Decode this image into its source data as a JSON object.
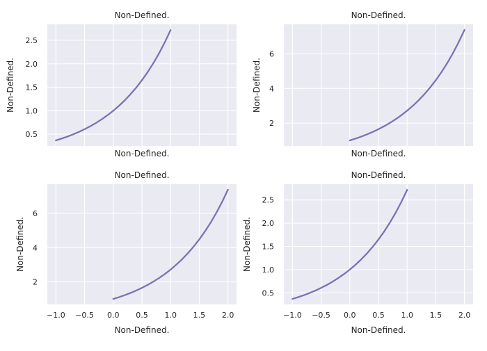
{
  "chart_data": [
    {
      "type": "line",
      "title": "Non-Defined.",
      "xlabel": "Non-Defined.",
      "ylabel": "Non-Defined.",
      "show_x_ticklabels": false,
      "xlim": [
        -1.15,
        2.15
      ],
      "ylim": [
        0.25,
        2.84
      ],
      "xticks": [
        -1.0,
        -0.5,
        0.0,
        0.5,
        1.0,
        1.5,
        2.0
      ],
      "yticks": [
        0.5,
        1.0,
        1.5,
        2.0,
        2.5
      ],
      "ytick_labels": [
        "0.5",
        "1.0",
        "1.5",
        "2.0",
        "2.5"
      ],
      "grid": true,
      "series": [
        {
          "color": "#7b72b5",
          "x": [
            -1.0,
            -0.9,
            -0.8,
            -0.7,
            -0.6,
            -0.5,
            -0.4,
            -0.3,
            -0.2,
            -0.1,
            0.0,
            0.1,
            0.2,
            0.3,
            0.4,
            0.5,
            0.6,
            0.7,
            0.8,
            0.9,
            1.0
          ],
          "y": [
            0.368,
            0.407,
            0.449,
            0.497,
            0.549,
            0.607,
            0.67,
            0.741,
            0.819,
            0.905,
            1.0,
            1.105,
            1.221,
            1.35,
            1.492,
            1.649,
            1.822,
            2.014,
            2.226,
            2.46,
            2.718
          ]
        }
      ]
    },
    {
      "type": "line",
      "title": "Non-Defined.",
      "xlabel": "Non-Defined.",
      "ylabel": "Non-Defined.",
      "show_x_ticklabels": false,
      "xlim": [
        -1.15,
        2.15
      ],
      "ylim": [
        0.68,
        7.71
      ],
      "xticks": [
        -1.0,
        -0.5,
        0.0,
        0.5,
        1.0,
        1.5,
        2.0
      ],
      "yticks": [
        2,
        4,
        6
      ],
      "ytick_labels": [
        "2",
        "4",
        "6"
      ],
      "grid": true,
      "series": [
        {
          "color": "#7b72b5",
          "x": [
            0.0,
            0.1,
            0.2,
            0.3,
            0.4,
            0.5,
            0.6,
            0.7,
            0.8,
            0.9,
            1.0,
            1.1,
            1.2,
            1.3,
            1.4,
            1.5,
            1.6,
            1.7,
            1.8,
            1.9,
            2.0
          ],
          "y": [
            1.0,
            1.105,
            1.221,
            1.35,
            1.492,
            1.649,
            1.822,
            2.014,
            2.226,
            2.46,
            2.718,
            3.004,
            3.32,
            3.669,
            4.055,
            4.482,
            4.953,
            5.474,
            6.05,
            6.686,
            7.389
          ]
        }
      ]
    },
    {
      "type": "line",
      "title": "Non-Defined.",
      "xlabel": "Non-Defined.",
      "ylabel": "Non-Defined.",
      "show_x_ticklabels": true,
      "xlim": [
        -1.15,
        2.15
      ],
      "ylim": [
        0.68,
        7.71
      ],
      "xticks": [
        -1.0,
        -0.5,
        0.0,
        0.5,
        1.0,
        1.5,
        2.0
      ],
      "xtick_labels": [
        "−1.0",
        "−0.5",
        "0.0",
        "0.5",
        "1.0",
        "1.5",
        "2.0"
      ],
      "yticks": [
        2,
        4,
        6
      ],
      "ytick_labels": [
        "2",
        "4",
        "6"
      ],
      "grid": true,
      "series": [
        {
          "color": "#7b72b5",
          "x": [
            0.0,
            0.1,
            0.2,
            0.3,
            0.4,
            0.5,
            0.6,
            0.7,
            0.8,
            0.9,
            1.0,
            1.1,
            1.2,
            1.3,
            1.4,
            1.5,
            1.6,
            1.7,
            1.8,
            1.9,
            2.0
          ],
          "y": [
            1.0,
            1.105,
            1.221,
            1.35,
            1.492,
            1.649,
            1.822,
            2.014,
            2.226,
            2.46,
            2.718,
            3.004,
            3.32,
            3.669,
            4.055,
            4.482,
            4.953,
            5.474,
            6.05,
            6.686,
            7.389
          ]
        }
      ]
    },
    {
      "type": "line",
      "title": "Non-Defined.",
      "xlabel": "Non-Defined.",
      "ylabel": "Non-Defined.",
      "show_x_ticklabels": true,
      "xlim": [
        -1.15,
        2.15
      ],
      "ylim": [
        0.25,
        2.84
      ],
      "xticks": [
        -1.0,
        -0.5,
        0.0,
        0.5,
        1.0,
        1.5,
        2.0
      ],
      "xtick_labels": [
        "−1.0",
        "−0.5",
        "0.0",
        "0.5",
        "1.0",
        "1.5",
        "2.0"
      ],
      "yticks": [
        0.5,
        1.0,
        1.5,
        2.0,
        2.5
      ],
      "ytick_labels": [
        "0.5",
        "1.0",
        "1.5",
        "2.0",
        "2.5"
      ],
      "grid": true,
      "series": [
        {
          "color": "#7b72b5",
          "x": [
            -1.0,
            -0.9,
            -0.8,
            -0.7,
            -0.6,
            -0.5,
            -0.4,
            -0.3,
            -0.2,
            -0.1,
            0.0,
            0.1,
            0.2,
            0.3,
            0.4,
            0.5,
            0.6,
            0.7,
            0.8,
            0.9,
            1.0
          ],
          "y": [
            0.368,
            0.407,
            0.449,
            0.497,
            0.549,
            0.607,
            0.67,
            0.741,
            0.819,
            0.905,
            1.0,
            1.105,
            1.221,
            1.35,
            1.492,
            1.649,
            1.822,
            2.014,
            2.226,
            2.46,
            2.718
          ]
        }
      ]
    }
  ]
}
